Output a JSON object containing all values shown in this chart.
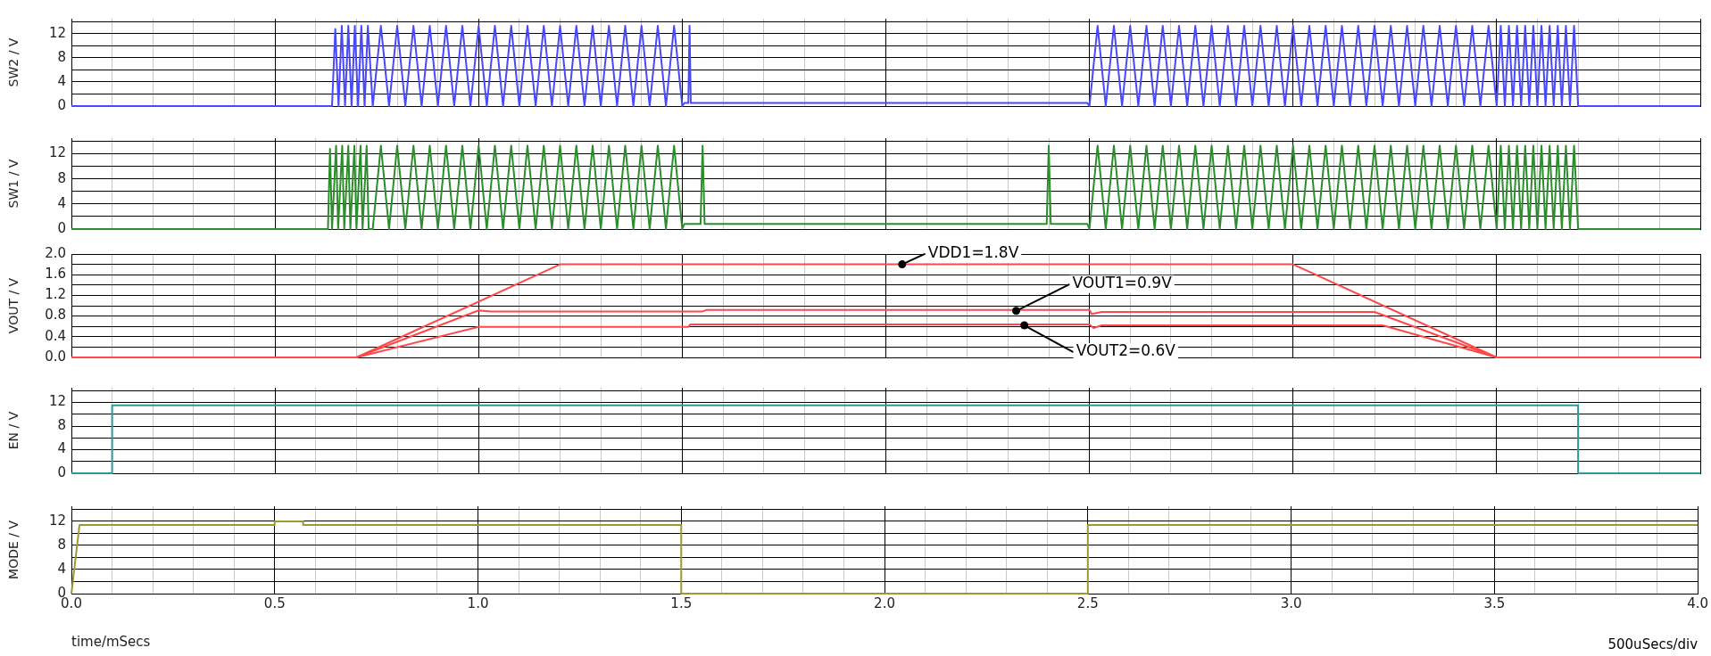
{
  "chart_data": [
    {
      "type": "line",
      "ylabel": "SW2 / V",
      "xlim": [
        0,
        4
      ],
      "ylim": [
        0,
        14.5
      ],
      "grid": true,
      "tick_labels": "y",
      "xticks": [
        0,
        {
          "value": 0.1,
          "label": null
        },
        {
          "value": 0.2,
          "label": null
        },
        {
          "value": 0.3,
          "label": null
        },
        {
          "value": 0.4,
          "label": null
        },
        0.5,
        {
          "value": 0.6,
          "label": null
        },
        {
          "value": 0.7,
          "label": null
        },
        {
          "value": 0.8,
          "label": null
        },
        {
          "value": 0.9,
          "label": null
        },
        1,
        {
          "value": 1.1,
          "label": null
        },
        {
          "value": 1.2,
          "label": null
        },
        {
          "value": 1.3,
          "label": null
        },
        {
          "value": 1.4,
          "label": null
        },
        1.5,
        {
          "value": 1.6,
          "label": null
        },
        {
          "value": 1.7,
          "label": null
        },
        {
          "value": 1.8,
          "label": null
        },
        {
          "value": 1.9,
          "label": null
        },
        2,
        {
          "value": 2.1,
          "label": null
        },
        {
          "value": 2.2,
          "label": null
        },
        {
          "value": 2.3,
          "label": null
        },
        {
          "value": 2.4,
          "label": null
        },
        2.5,
        {
          "value": 2.6,
          "label": null
        },
        {
          "value": 2.7,
          "label": null
        },
        {
          "value": 2.8,
          "label": null
        },
        {
          "value": 2.9,
          "label": null
        },
        3,
        {
          "value": 3.1,
          "label": null
        },
        {
          "value": 3.2,
          "label": null
        },
        {
          "value": 3.3,
          "label": null
        },
        {
          "value": 3.4,
          "label": null
        },
        3.5,
        {
          "value": 3.6,
          "label": null
        },
        {
          "value": 3.7,
          "label": null
        },
        {
          "value": 3.8,
          "label": null
        },
        {
          "value": 3.9,
          "label": null
        },
        4
      ],
      "yticks": [
        0,
        {
          "value": 2,
          "label": null
        },
        4,
        {
          "value": 6,
          "label": null
        },
        8,
        {
          "value": 10,
          "label": null
        },
        12,
        {
          "value": 14,
          "label": null
        }
      ],
      "series": [
        {
          "color": "#4848ff",
          "x": [
            0,
            0.64,
            0.648,
            0.656,
            0.664,
            0.672,
            0.68,
            0.688,
            0.696,
            0.704,
            0.712,
            0.72,
            0.728,
            0.74,
            0.76,
            0.78,
            0.8,
            0.82,
            0.84,
            0.86,
            0.88,
            0.9,
            0.92,
            0.94,
            0.96,
            0.98,
            1,
            1.02,
            1.04,
            1.06,
            1.08,
            1.1,
            1.12,
            1.14,
            1.16,
            1.18,
            1.2,
            1.22,
            1.24,
            1.26,
            1.28,
            1.3,
            1.32,
            1.34,
            1.36,
            1.38,
            1.4,
            1.42,
            1.44,
            1.46,
            1.48,
            1.5,
            1.505,
            1.515,
            1.518,
            1.521,
            2.495,
            2.5,
            2.52,
            2.54,
            2.56,
            2.58,
            2.6,
            2.62,
            2.64,
            2.66,
            2.68,
            2.7,
            2.72,
            2.74,
            2.76,
            2.78,
            2.8,
            2.82,
            2.84,
            2.86,
            2.88,
            2.9,
            2.92,
            2.94,
            2.96,
            2.98,
            3,
            3.02,
            3.04,
            3.06,
            3.08,
            3.1,
            3.12,
            3.14,
            3.16,
            3.18,
            3.2,
            3.22,
            3.24,
            3.26,
            3.28,
            3.3,
            3.32,
            3.34,
            3.36,
            3.38,
            3.4,
            3.42,
            3.44,
            3.46,
            3.48,
            3.5,
            3.51,
            3.52,
            3.53,
            3.54,
            3.55,
            3.56,
            3.57,
            3.58,
            3.59,
            3.6,
            3.61,
            3.62,
            3.63,
            3.64,
            3.65,
            3.66,
            3.67,
            3.68,
            3.69,
            3.7,
            4
          ],
          "values": [
            0,
            0,
            12.8,
            0,
            13.3,
            0,
            13.3,
            0,
            13.3,
            0,
            13.3,
            0,
            13.3,
            0,
            13.3,
            0,
            13.3,
            0,
            13.3,
            0,
            13.3,
            0,
            13.3,
            0,
            13.3,
            0,
            13.3,
            0,
            13.3,
            0,
            13.3,
            0,
            13.3,
            0,
            13.3,
            0,
            13.3,
            0,
            13.3,
            0,
            13.3,
            0,
            13.3,
            0,
            13.3,
            0,
            13.3,
            0,
            13.3,
            0,
            13.3,
            0,
            0.5,
            0.5,
            13.3,
            0.5,
            0.5,
            0,
            13.3,
            0,
            13.3,
            0,
            13.3,
            0,
            13.3,
            0,
            13.3,
            0,
            13.3,
            0,
            13.3,
            0,
            13.3,
            0,
            13.3,
            0,
            13.3,
            0,
            13.3,
            0,
            13.3,
            0,
            13.3,
            0,
            13.3,
            0,
            13.3,
            0,
            13.3,
            0,
            13.3,
            0,
            13.3,
            0,
            13.3,
            0,
            13.3,
            0,
            13.3,
            0,
            13.3,
            0,
            13.3,
            0,
            13.3,
            0,
            13.3,
            0,
            13.3,
            0,
            13.3,
            0,
            13.3,
            0,
            13.3,
            0,
            13.3,
            0,
            13.3,
            0,
            13.3,
            0,
            13.3,
            0,
            13.3,
            0,
            13.3,
            0,
            0
          ]
        }
      ]
    },
    {
      "type": "line",
      "ylabel": "SW1 / V",
      "xlim": [
        0,
        4
      ],
      "ylim": [
        0,
        14.5
      ],
      "grid": true,
      "tick_labels": "y",
      "xticks": [
        0,
        {
          "value": 0.1,
          "label": null
        },
        {
          "value": 0.2,
          "label": null
        },
        {
          "value": 0.3,
          "label": null
        },
        {
          "value": 0.4,
          "label": null
        },
        0.5,
        {
          "value": 0.6,
          "label": null
        },
        {
          "value": 0.7,
          "label": null
        },
        {
          "value": 0.8,
          "label": null
        },
        {
          "value": 0.9,
          "label": null
        },
        1,
        {
          "value": 1.1,
          "label": null
        },
        {
          "value": 1.2,
          "label": null
        },
        {
          "value": 1.3,
          "label": null
        },
        {
          "value": 1.4,
          "label": null
        },
        1.5,
        {
          "value": 1.6,
          "label": null
        },
        {
          "value": 1.7,
          "label": null
        },
        {
          "value": 1.8,
          "label": null
        },
        {
          "value": 1.9,
          "label": null
        },
        2,
        {
          "value": 2.1,
          "label": null
        },
        {
          "value": 2.2,
          "label": null
        },
        {
          "value": 2.3,
          "label": null
        },
        {
          "value": 2.4,
          "label": null
        },
        2.5,
        {
          "value": 2.6,
          "label": null
        },
        {
          "value": 2.7,
          "label": null
        },
        {
          "value": 2.8,
          "label": null
        },
        {
          "value": 2.9,
          "label": null
        },
        3,
        {
          "value": 3.1,
          "label": null
        },
        {
          "value": 3.2,
          "label": null
        },
        {
          "value": 3.3,
          "label": null
        },
        {
          "value": 3.4,
          "label": null
        },
        3.5,
        {
          "value": 3.6,
          "label": null
        },
        {
          "value": 3.7,
          "label": null
        },
        {
          "value": 3.8,
          "label": null
        },
        {
          "value": 3.9,
          "label": null
        },
        4
      ],
      "yticks": [
        0,
        {
          "value": 2,
          "label": null
        },
        4,
        {
          "value": 6,
          "label": null
        },
        8,
        {
          "value": 10,
          "label": null
        },
        12,
        {
          "value": 14,
          "label": null
        }
      ],
      "series": [
        {
          "color": "#2a8f2a",
          "x": [
            0,
            0.63,
            0.635,
            0.64,
            0.65,
            0.655,
            0.665,
            0.67,
            0.68,
            0.685,
            0.695,
            0.7,
            0.71,
            0.715,
            0.725,
            0.73,
            0.74,
            0.76,
            0.78,
            0.8,
            0.82,
            0.84,
            0.86,
            0.88,
            0.9,
            0.92,
            0.94,
            0.96,
            0.98,
            1,
            1.02,
            1.04,
            1.06,
            1.08,
            1.1,
            1.12,
            1.14,
            1.16,
            1.18,
            1.2,
            1.22,
            1.24,
            1.26,
            1.28,
            1.3,
            1.32,
            1.34,
            1.36,
            1.38,
            1.4,
            1.42,
            1.44,
            1.46,
            1.48,
            1.5,
            1.505,
            1.545,
            1.55,
            1.555,
            2.395,
            2.4,
            2.405,
            2.495,
            2.5,
            2.52,
            2.54,
            2.56,
            2.58,
            2.6,
            2.62,
            2.64,
            2.66,
            2.68,
            2.7,
            2.72,
            2.74,
            2.76,
            2.78,
            2.8,
            2.82,
            2.84,
            2.86,
            2.88,
            2.9,
            2.92,
            2.94,
            2.96,
            2.98,
            3,
            3.02,
            3.04,
            3.06,
            3.08,
            3.1,
            3.12,
            3.14,
            3.16,
            3.18,
            3.2,
            3.22,
            3.24,
            3.26,
            3.28,
            3.3,
            3.32,
            3.34,
            3.36,
            3.38,
            3.4,
            3.42,
            3.44,
            3.46,
            3.48,
            3.5,
            3.51,
            3.52,
            3.53,
            3.54,
            3.55,
            3.56,
            3.57,
            3.58,
            3.59,
            3.6,
            3.61,
            3.62,
            3.63,
            3.64,
            3.65,
            3.66,
            3.67,
            3.68,
            3.69,
            3.7,
            4
          ],
          "values": [
            0,
            0,
            12.8,
            0,
            13.3,
            0,
            13.3,
            0,
            13.3,
            0,
            13.3,
            0,
            13.3,
            0,
            13.3,
            0,
            0,
            13.3,
            0,
            13.3,
            0,
            13.3,
            0,
            13.3,
            0,
            13.3,
            0,
            13.3,
            0,
            13.3,
            0,
            13.3,
            0,
            13.3,
            0,
            13.3,
            0,
            13.3,
            0,
            13.3,
            0,
            13.3,
            0,
            13.3,
            0,
            13.3,
            0,
            13.3,
            0,
            13.3,
            0,
            13.3,
            0,
            13.3,
            0,
            0.8,
            0.8,
            13.3,
            0.8,
            0.8,
            13.3,
            0.8,
            0.8,
            0,
            13.3,
            0,
            13.3,
            0,
            13.3,
            0,
            13.3,
            0,
            13.3,
            0,
            13.3,
            0,
            13.3,
            0,
            13.3,
            0,
            13.3,
            0,
            13.3,
            0,
            13.3,
            0,
            13.3,
            0,
            13.3,
            0,
            13.3,
            0,
            13.3,
            0,
            13.3,
            0,
            13.3,
            0,
            13.3,
            0,
            13.3,
            0,
            13.3,
            0,
            13.3,
            0,
            13.3,
            0,
            13.3,
            0,
            13.3,
            0,
            13.3,
            0,
            13.3,
            0,
            13.3,
            0,
            13.3,
            0,
            13.3,
            0,
            13.3,
            0,
            13.3,
            0,
            13.3,
            0,
            13.3,
            0,
            13.3,
            0,
            13.3,
            0,
            0
          ]
        }
      ]
    },
    {
      "type": "line",
      "ylabel": "VOUT / V",
      "xlim": [
        0,
        4
      ],
      "ylim": [
        0,
        2
      ],
      "grid": true,
      "tick_labels": "y",
      "xticks": [
        0,
        {
          "value": 0.1,
          "label": null
        },
        {
          "value": 0.2,
          "label": null
        },
        {
          "value": 0.3,
          "label": null
        },
        {
          "value": 0.4,
          "label": null
        },
        0.5,
        {
          "value": 0.6,
          "label": null
        },
        {
          "value": 0.7,
          "label": null
        },
        {
          "value": 0.8,
          "label": null
        },
        {
          "value": 0.9,
          "label": null
        },
        1,
        {
          "value": 1.1,
          "label": null
        },
        {
          "value": 1.2,
          "label": null
        },
        {
          "value": 1.3,
          "label": null
        },
        {
          "value": 1.4,
          "label": null
        },
        1.5,
        {
          "value": 1.6,
          "label": null
        },
        {
          "value": 1.7,
          "label": null
        },
        {
          "value": 1.8,
          "label": null
        },
        {
          "value": 1.9,
          "label": null
        },
        2,
        {
          "value": 2.1,
          "label": null
        },
        {
          "value": 2.2,
          "label": null
        },
        {
          "value": 2.3,
          "label": null
        },
        {
          "value": 2.4,
          "label": null
        },
        2.5,
        {
          "value": 2.6,
          "label": null
        },
        {
          "value": 2.7,
          "label": null
        },
        {
          "value": 2.8,
          "label": null
        },
        {
          "value": 2.9,
          "label": null
        },
        3,
        {
          "value": 3.1,
          "label": null
        },
        {
          "value": 3.2,
          "label": null
        },
        {
          "value": 3.3,
          "label": null
        },
        {
          "value": 3.4,
          "label": null
        },
        3.5,
        {
          "value": 3.6,
          "label": null
        },
        {
          "value": 3.7,
          "label": null
        },
        {
          "value": 3.8,
          "label": null
        },
        {
          "value": 3.9,
          "label": null
        },
        4
      ],
      "yticks": [
        {
          "value": 0,
          "label": "0.0"
        },
        {
          "value": 0.2,
          "label": null
        },
        {
          "value": 0.4,
          "label": "0.4"
        },
        {
          "value": 0.6,
          "label": null
        },
        {
          "value": 0.8,
          "label": "0.8"
        },
        {
          "value": 1,
          "label": null
        },
        {
          "value": 1.2,
          "label": "1.2"
        },
        {
          "value": 1.4,
          "label": null
        },
        {
          "value": 1.6,
          "label": "1.6"
        },
        {
          "value": 1.8,
          "label": null
        },
        {
          "value": 2,
          "label": "2.0"
        }
      ],
      "series": [
        {
          "color": "#ff4848",
          "x": [
            0,
            0.7,
            1.2,
            3,
            3.5,
            4
          ],
          "values": [
            0,
            0,
            1.8,
            1.8,
            0,
            0
          ]
        },
        {
          "color": "#ff4848",
          "x": [
            0,
            0.7,
            1,
            1.03,
            1.55,
            1.56,
            2.39,
            2.4,
            2.5,
            2.505,
            2.53,
            3.2,
            3.5,
            4
          ],
          "values": [
            0,
            0,
            0.91,
            0.89,
            0.89,
            0.92,
            0.92,
            0.92,
            0.92,
            0.84,
            0.88,
            0.88,
            0,
            0
          ]
        },
        {
          "color": "#ff4848",
          "x": [
            0,
            0.7,
            1,
            1.515,
            1.52,
            2.5,
            2.51,
            2.53,
            3.22,
            3.5,
            4
          ],
          "values": [
            0,
            0,
            0.59,
            0.59,
            0.64,
            0.64,
            0.57,
            0.62,
            0.62,
            0,
            0
          ]
        }
      ],
      "annotations": [
        {
          "text": "VDD1=1.8V",
          "x": 2.04,
          "y": 1.8
        },
        {
          "text": "VOUT1=0.9V",
          "x": 2.32,
          "y": 0.9
        },
        {
          "text": "VOUT2=0.6V",
          "x": 2.34,
          "y": 0.62
        }
      ]
    },
    {
      "type": "line",
      "ylabel": "EN / V",
      "xlim": [
        0,
        4
      ],
      "ylim": [
        0,
        14.5
      ],
      "grid": true,
      "tick_labels": "y",
      "xticks": [
        0,
        {
          "value": 0.1,
          "label": null
        },
        {
          "value": 0.2,
          "label": null
        },
        {
          "value": 0.3,
          "label": null
        },
        {
          "value": 0.4,
          "label": null
        },
        0.5,
        {
          "value": 0.6,
          "label": null
        },
        {
          "value": 0.7,
          "label": null
        },
        {
          "value": 0.8,
          "label": null
        },
        {
          "value": 0.9,
          "label": null
        },
        1,
        {
          "value": 1.1,
          "label": null
        },
        {
          "value": 1.2,
          "label": null
        },
        {
          "value": 1.3,
          "label": null
        },
        {
          "value": 1.4,
          "label": null
        },
        1.5,
        {
          "value": 1.6,
          "label": null
        },
        {
          "value": 1.7,
          "label": null
        },
        {
          "value": 1.8,
          "label": null
        },
        {
          "value": 1.9,
          "label": null
        },
        2,
        {
          "value": 2.1,
          "label": null
        },
        {
          "value": 2.2,
          "label": null
        },
        {
          "value": 2.3,
          "label": null
        },
        {
          "value": 2.4,
          "label": null
        },
        2.5,
        {
          "value": 2.6,
          "label": null
        },
        {
          "value": 2.7,
          "label": null
        },
        {
          "value": 2.8,
          "label": null
        },
        {
          "value": 2.9,
          "label": null
        },
        3,
        {
          "value": 3.1,
          "label": null
        },
        {
          "value": 3.2,
          "label": null
        },
        {
          "value": 3.3,
          "label": null
        },
        {
          "value": 3.4,
          "label": null
        },
        3.5,
        {
          "value": 3.6,
          "label": null
        },
        {
          "value": 3.7,
          "label": null
        },
        {
          "value": 3.8,
          "label": null
        },
        {
          "value": 3.9,
          "label": null
        },
        4
      ],
      "yticks": [
        0,
        {
          "value": 2,
          "label": null
        },
        4,
        {
          "value": 6,
          "label": null
        },
        8,
        {
          "value": 10,
          "label": null
        },
        12,
        {
          "value": 14,
          "label": null
        }
      ],
      "series": [
        {
          "color": "#2a9a9a",
          "x": [
            0,
            0.1,
            0.1,
            3.7,
            3.7,
            4
          ],
          "values": [
            0,
            0,
            11.5,
            11.5,
            0,
            0
          ]
        }
      ]
    },
    {
      "type": "line",
      "ylabel": "MODE / V",
      "xlabel": "time/mSecs",
      "xlim": [
        0,
        4
      ],
      "ylim": [
        0,
        14.5
      ],
      "grid": true,
      "xticks": [
        {
          "value": 0,
          "label": "0.0"
        },
        {
          "value": 0.1,
          "label": null
        },
        {
          "value": 0.2,
          "label": null
        },
        {
          "value": 0.3,
          "label": null
        },
        {
          "value": 0.4,
          "label": null
        },
        {
          "value": 0.5,
          "label": "0.5"
        },
        {
          "value": 0.6,
          "label": null
        },
        {
          "value": 0.7,
          "label": null
        },
        {
          "value": 0.8,
          "label": null
        },
        {
          "value": 0.9,
          "label": null
        },
        {
          "value": 1,
          "label": "1.0"
        },
        {
          "value": 1.1,
          "label": null
        },
        {
          "value": 1.2,
          "label": null
        },
        {
          "value": 1.3,
          "label": null
        },
        {
          "value": 1.4,
          "label": null
        },
        {
          "value": 1.5,
          "label": "1.5"
        },
        {
          "value": 1.6,
          "label": null
        },
        {
          "value": 1.7,
          "label": null
        },
        {
          "value": 1.8,
          "label": null
        },
        {
          "value": 1.9,
          "label": null
        },
        {
          "value": 2,
          "label": "2.0"
        },
        {
          "value": 2.1,
          "label": null
        },
        {
          "value": 2.2,
          "label": null
        },
        {
          "value": 2.3,
          "label": null
        },
        {
          "value": 2.4,
          "label": null
        },
        {
          "value": 2.5,
          "label": "2.5"
        },
        {
          "value": 2.6,
          "label": null
        },
        {
          "value": 2.7,
          "label": null
        },
        {
          "value": 2.8,
          "label": null
        },
        {
          "value": 2.9,
          "label": null
        },
        {
          "value": 3,
          "label": "3.0"
        },
        {
          "value": 3.1,
          "label": null
        },
        {
          "value": 3.2,
          "label": null
        },
        {
          "value": 3.3,
          "label": null
        },
        {
          "value": 3.4,
          "label": null
        },
        {
          "value": 3.5,
          "label": "3.5"
        },
        {
          "value": 3.6,
          "label": null
        },
        {
          "value": 3.7,
          "label": null
        },
        {
          "value": 3.8,
          "label": null
        },
        {
          "value": 3.9,
          "label": null
        },
        {
          "value": 4,
          "label": "4.0"
        }
      ],
      "yticks": [
        0,
        {
          "value": 2,
          "label": null
        },
        4,
        {
          "value": 6,
          "label": null
        },
        8,
        {
          "value": 10,
          "label": null
        },
        12,
        {
          "value": 14,
          "label": null
        }
      ],
      "series": [
        {
          "color": "#9a9a30",
          "x": [
            0,
            0.02,
            0.5,
            0.5,
            0.57,
            0.57,
            1.5,
            1.5,
            2.5,
            2.5,
            4
          ],
          "values": [
            0,
            11.4,
            11.4,
            12,
            12,
            11.4,
            11.4,
            0,
            0,
            11.4,
            11.4
          ]
        }
      ],
      "annotations": [
        "500uSecs/div"
      ]
    }
  ]
}
